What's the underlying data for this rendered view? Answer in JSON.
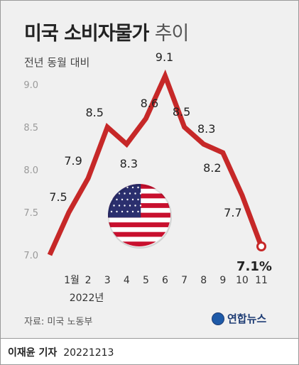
{
  "title_main": "미국 소비자물가",
  "title_suffix": "추이",
  "unit_label": "전년 동월 대비",
  "source": "자료: 미국 노동부",
  "brand": "연합뉴스",
  "reporter": "이재윤 기자",
  "date": "20221213",
  "colors": {
    "line": "#c62828",
    "background": "#f0f0f0",
    "text": "#222222",
    "axis_text": "#9a9a9a",
    "brand": "#1e3c74"
  },
  "chart_data": {
    "type": "line",
    "title": "미국 소비자물가 추이",
    "ylabel": "전년 동월 대비",
    "categories": [
      "1월",
      "2",
      "3",
      "4",
      "5",
      "6",
      "7",
      "8",
      "9",
      "10",
      "11"
    ],
    "x_sublabel": "2022년",
    "values": [
      7.5,
      7.9,
      8.5,
      8.3,
      8.6,
      9.1,
      8.5,
      8.3,
      8.2,
      7.7,
      7.1
    ],
    "data_labels": [
      "7.5",
      "7.9",
      "8.5",
      "8.3",
      "8.6",
      "9.1",
      "8.5",
      "8.3",
      "8.2",
      "7.7",
      "7.1%"
    ],
    "line_start_value": 7.0,
    "yticks": [
      "7.0",
      "7.5",
      "8.0",
      "8.5",
      "9.0"
    ],
    "ylim": [
      7.0,
      9.0
    ],
    "grid": false,
    "legend": "none",
    "emblem": "us-flag-icon"
  }
}
